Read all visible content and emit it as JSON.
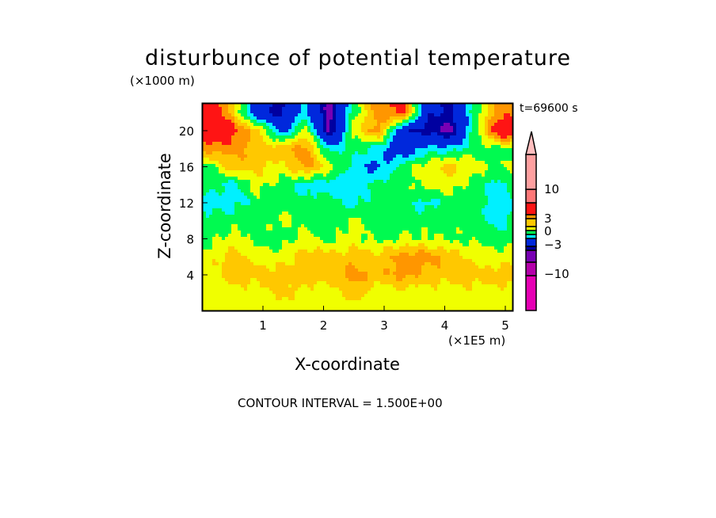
{
  "chart_data": {
    "type": "heatmap",
    "title": "disturbunce of potential temperature",
    "xlabel": "X-coordinate",
    "ylabel": "Z-coordinate",
    "x_unit": "(×1E5 m)",
    "y_unit": "(×1000 m)",
    "time_label": "t=69600 s",
    "footer": "CONTOUR INTERVAL = 1.500E+00",
    "xlim": [
      0,
      5.13
    ],
    "ylim": [
      0,
      23.1
    ],
    "x_ticks": [
      "1",
      "2",
      "3",
      "4",
      "5"
    ],
    "y_ticks": [
      "4",
      "8",
      "12",
      "16",
      "20"
    ],
    "colorbar_labels": [
      "10",
      "3",
      "0",
      "-3",
      "-10"
    ],
    "grid_x": [
      0.1,
      0.5,
      0.9,
      1.3,
      1.7,
      2.1,
      2.5,
      2.9,
      3.3,
      3.7,
      4.1,
      4.5,
      4.9,
      5.1
    ],
    "grid_z": [
      22,
      20,
      18,
      16,
      14,
      12,
      10,
      8,
      6,
      4,
      2,
      0.5
    ],
    "values": [
      [
        5,
        2,
        -3,
        -4,
        -1,
        -5,
        0,
        3,
        4,
        -3,
        -4,
        0,
        3,
        3
      ],
      [
        5,
        4,
        2,
        -2,
        1,
        -5,
        1,
        3,
        -3,
        -4,
        -5,
        0,
        5,
        5
      ],
      [
        3,
        3,
        2,
        2,
        3,
        -1,
        0,
        -1,
        -3,
        -1,
        -1,
        0,
        0,
        0
      ],
      [
        0,
        2,
        2,
        1,
        3,
        1,
        -1,
        -2,
        0,
        1,
        2,
        1,
        0,
        1
      ],
      [
        0,
        -1,
        1,
        0,
        -1,
        -1,
        -1,
        0,
        0,
        1,
        1,
        0,
        -1,
        0
      ],
      [
        -1,
        -1,
        0,
        0,
        0,
        0,
        -1,
        0,
        0,
        -1,
        0,
        0,
        -1,
        -1
      ],
      [
        0,
        0,
        0,
        0.8,
        0,
        0,
        0.8,
        0,
        0,
        0,
        0,
        0,
        -1,
        0
      ],
      [
        0,
        1,
        0,
        0,
        1,
        0,
        1,
        0,
        0.6,
        0.6,
        0.4,
        0.3,
        0,
        0
      ],
      [
        1,
        2,
        1,
        1,
        2,
        2,
        2,
        2,
        3,
        3,
        2,
        1,
        1,
        1
      ],
      [
        1,
        2,
        2,
        2,
        2,
        2,
        3,
        2,
        3,
        2,
        2,
        2,
        2,
        2
      ],
      [
        1,
        1,
        1,
        2,
        1,
        1,
        2,
        1,
        1,
        1,
        1,
        1,
        1,
        1
      ],
      [
        1,
        1,
        1,
        1,
        1,
        1,
        1,
        1,
        1,
        1,
        1,
        1,
        1,
        1
      ]
    ],
    "levels": [
      {
        "max": -10.5,
        "color": "#e600b4"
      },
      {
        "max": -7.5,
        "color": "#b400aa"
      },
      {
        "max": -4.5,
        "color": "#7800b4"
      },
      {
        "max": -3.5,
        "color": "#0000a0"
      },
      {
        "max": -1.5,
        "color": "#0028dc"
      },
      {
        "max": -0.5,
        "color": "#00f0ff"
      },
      {
        "max": 0.5,
        "color": "#00fa50"
      },
      {
        "max": 1.5,
        "color": "#f0ff00"
      },
      {
        "max": 2.5,
        "color": "#ffc800"
      },
      {
        "max": 3.5,
        "color": "#ff9600"
      },
      {
        "max": 7,
        "color": "#ff1414"
      },
      {
        "max": 10,
        "color": "#ff7878"
      },
      {
        "max": 15,
        "color": "#ffa0a0"
      },
      {
        "max": 999,
        "color": "#ffbebe"
      }
    ]
  }
}
